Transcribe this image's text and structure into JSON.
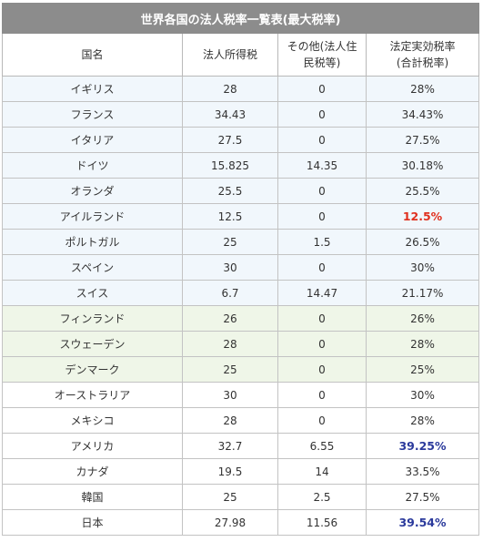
{
  "table": {
    "title": "世界各国の法人税率一覧表(最大税率)",
    "headers": {
      "country": "国名",
      "corporate": "法人所得税",
      "other_line1": "その他(法人住",
      "other_line2": "民税等)",
      "effective_line1": "法定実効税率",
      "effective_line2": "(合計税率)"
    },
    "rows": [
      {
        "country": "イギリス",
        "corporate": "28",
        "other": "0",
        "effective": "28%",
        "band": "blue"
      },
      {
        "country": "フランス",
        "corporate": "34.43",
        "other": "0",
        "effective": "34.43%",
        "band": "blue"
      },
      {
        "country": "イタリア",
        "corporate": "27.5",
        "other": "0",
        "effective": "27.5%",
        "band": "blue"
      },
      {
        "country": "ドイツ",
        "corporate": "15.825",
        "other": "14.35",
        "effective": "30.18%",
        "band": "blue"
      },
      {
        "country": "オランダ",
        "corporate": "25.5",
        "other": "0",
        "effective": "25.5%",
        "band": "blue"
      },
      {
        "country": "アイルランド",
        "corporate": "12.5",
        "other": "0",
        "effective": "12.5%",
        "band": "blue",
        "highlight_color": "#e0301e"
      },
      {
        "country": "ポルトガル",
        "corporate": "25",
        "other": "1.5",
        "effective": "26.5%",
        "band": "blue"
      },
      {
        "country": "スペイン",
        "corporate": "30",
        "other": "0",
        "effective": "30%",
        "band": "blue"
      },
      {
        "country": "スイス",
        "corporate": "6.7",
        "other": "14.47",
        "effective": "21.17%",
        "band": "blue"
      },
      {
        "country": "フィンランド",
        "corporate": "26",
        "other": "0",
        "effective": "26%",
        "band": "green"
      },
      {
        "country": "スウェーデン",
        "corporate": "28",
        "other": "0",
        "effective": "28%",
        "band": "green"
      },
      {
        "country": "デンマーク",
        "corporate": "25",
        "other": "0",
        "effective": "25%",
        "band": "green"
      },
      {
        "country": "オーストラリア",
        "corporate": "30",
        "other": "0",
        "effective": "30%",
        "band": "white"
      },
      {
        "country": "メキシコ",
        "corporate": "28",
        "other": "0",
        "effective": "28%",
        "band": "white"
      },
      {
        "country": "アメリカ",
        "corporate": "32.7",
        "other": "6.55",
        "effective": "39.25%",
        "band": "white",
        "highlight_color": "#2b3a9c"
      },
      {
        "country": "カナダ",
        "corporate": "19.5",
        "other": "14",
        "effective": "33.5%",
        "band": "white"
      },
      {
        "country": "韓国",
        "corporate": "25",
        "other": "2.5",
        "effective": "27.5%",
        "band": "white"
      },
      {
        "country": "日本",
        "corporate": "27.98",
        "other": "11.56",
        "effective": "39.54%",
        "band": "white",
        "highlight_color": "#2b3a9c"
      }
    ]
  }
}
